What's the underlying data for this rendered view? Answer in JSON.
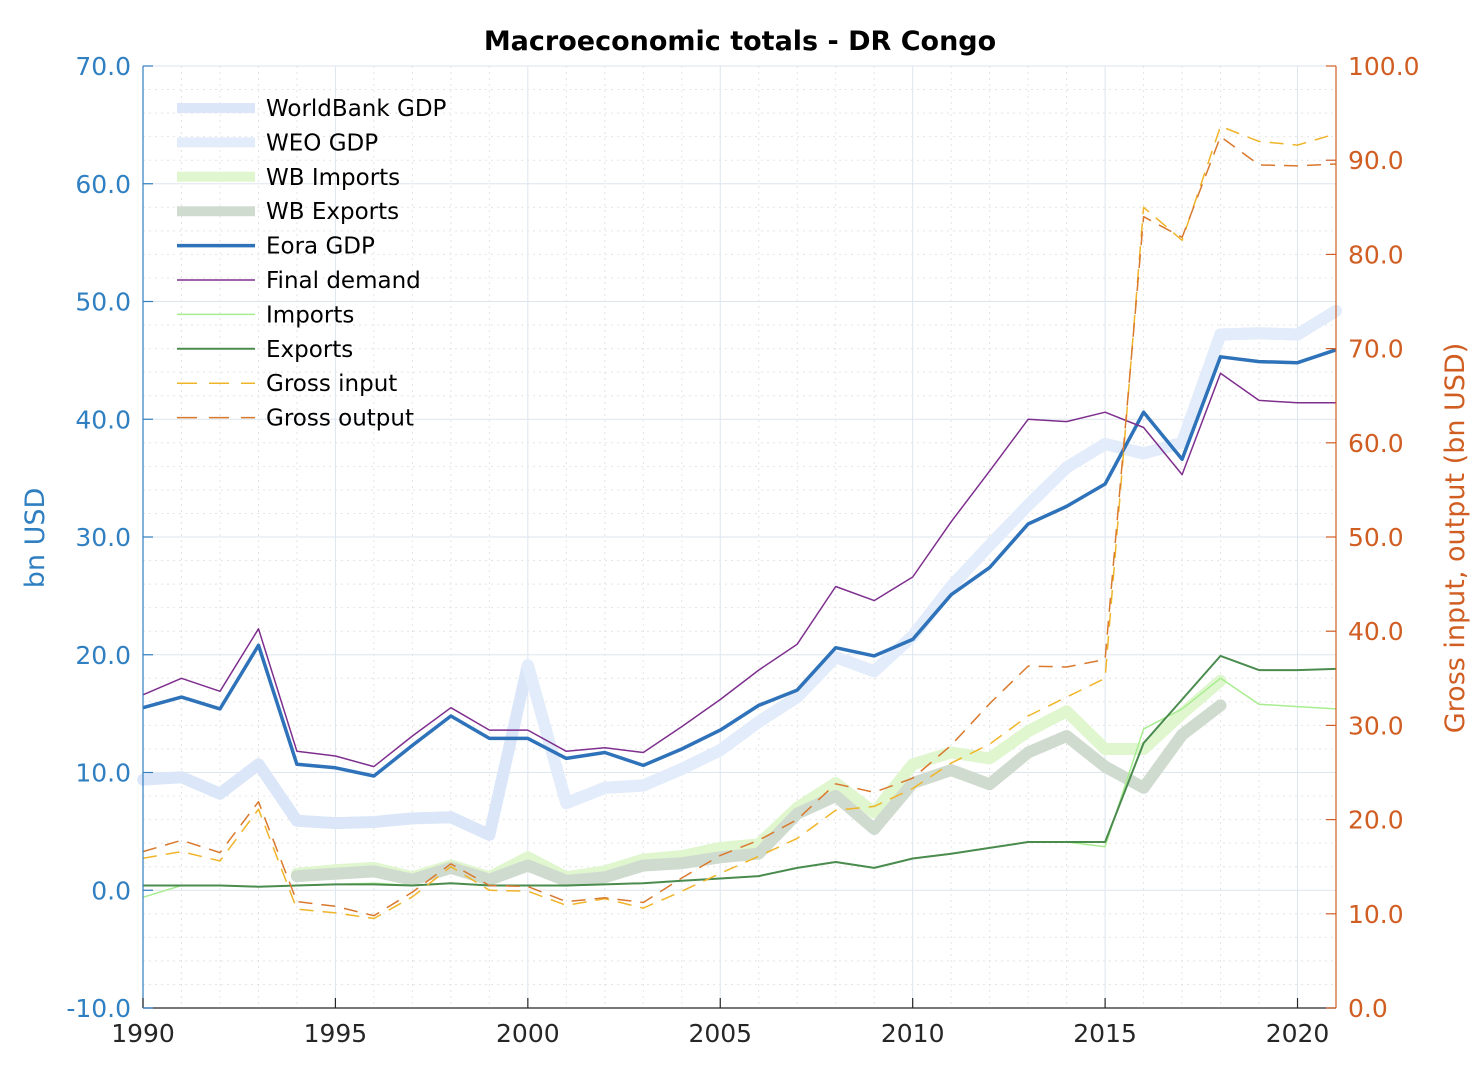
{
  "chart_data": {
    "type": "line",
    "title": "Macroeconomic totals - DR Congo",
    "ylabel_left": "bn USD",
    "ylabel_right": "Gross input, output (bn USD)",
    "xlim": [
      1990,
      2021
    ],
    "ylim_left": [
      -10,
      70
    ],
    "ylim_right": [
      0,
      100
    ],
    "x_ticks": [
      1990,
      1995,
      2000,
      2005,
      2010,
      2015,
      2020
    ],
    "y_ticks_left": [
      "-10.0",
      "0.0",
      "10.0",
      "20.0",
      "30.0",
      "40.0",
      "50.0",
      "60.0",
      "70.0"
    ],
    "y_ticks_right": [
      "0.0",
      "10.0",
      "20.0",
      "30.0",
      "40.0",
      "50.0",
      "60.0",
      "70.0",
      "80.0",
      "90.0",
      "100.0"
    ],
    "grid": true,
    "legend_position": "top-left",
    "series": [
      {
        "name": "WorldBank GDP",
        "axis": "left",
        "color": "#dbe7f8",
        "width": 12,
        "dash": "",
        "x": [
          1990,
          1991,
          1992,
          1993,
          1994,
          1995,
          1996,
          1997,
          1998,
          1999,
          2000,
          2001,
          2002,
          2003,
          2004,
          2005,
          2006,
          2007,
          2008,
          2009,
          2010,
          2011,
          2012,
          2013,
          2014,
          2015,
          2016,
          2017,
          2018,
          2019,
          2020,
          2021
        ],
        "y": [
          9.4,
          9.6,
          8.2,
          10.7,
          5.9,
          5.7,
          5.8,
          6.1,
          6.2,
          4.7,
          19.1,
          7.4,
          8.7,
          8.9,
          10.3,
          11.9,
          14.3,
          16.4,
          19.8,
          18.6,
          21.6,
          25.8,
          29.3,
          32.7,
          35.9,
          37.9,
          37.1,
          38.0,
          47.2,
          47.3,
          47.2,
          49.2
        ]
      },
      {
        "name": "WEO GDP",
        "axis": "left",
        "color": "#e3ecfa",
        "width": 12,
        "dash": "",
        "x": [
          2000,
          2001,
          2002,
          2003,
          2004,
          2005,
          2006,
          2007,
          2008,
          2009,
          2010,
          2011,
          2012,
          2013,
          2014,
          2015,
          2016,
          2017,
          2018,
          2019,
          2020,
          2021
        ],
        "y": [
          19.1,
          7.4,
          8.7,
          8.9,
          10.3,
          11.9,
          14.3,
          16.4,
          19.8,
          18.6,
          21.6,
          25.8,
          29.3,
          32.7,
          35.9,
          37.9,
          37.1,
          38.0,
          47.2,
          47.3,
          47.2,
          49.2
        ]
      },
      {
        "name": "WB Imports",
        "axis": "left",
        "color": "#dff6cf",
        "width": 12,
        "dash": "",
        "x": [
          1994,
          1995,
          1996,
          1997,
          1998,
          1999,
          2000,
          2001,
          2002,
          2003,
          2004,
          2005,
          2006,
          2007,
          2008,
          2009,
          2010,
          2011,
          2012,
          2013,
          2014,
          2015,
          2016,
          2017,
          2018
        ],
        "y": [
          1.4,
          1.7,
          1.9,
          1.1,
          2.1,
          1.1,
          2.8,
          1.1,
          1.6,
          2.6,
          2.9,
          3.6,
          3.9,
          7.0,
          9.1,
          6.6,
          10.7,
          11.7,
          11.2,
          13.5,
          15.2,
          12.0,
          12.0,
          15.0,
          17.8
        ]
      },
      {
        "name": "WB Exports",
        "axis": "left",
        "color": "#d0dbcf",
        "width": 12,
        "dash": "",
        "x": [
          1994,
          1995,
          1996,
          1997,
          1998,
          1999,
          2000,
          2001,
          2002,
          2003,
          2004,
          2005,
          2006,
          2007,
          2008,
          2009,
          2010,
          2011,
          2012,
          2013,
          2014,
          2015,
          2016,
          2017,
          2018
        ],
        "y": [
          1.2,
          1.4,
          1.6,
          0.9,
          1.9,
          0.9,
          2.1,
          0.8,
          1.1,
          2.1,
          2.3,
          2.8,
          3.1,
          6.5,
          8.0,
          5.2,
          9.1,
          10.2,
          9.0,
          11.7,
          13.1,
          10.5,
          8.7,
          13.2,
          15.7
        ]
      },
      {
        "name": "Eora GDP",
        "axis": "left",
        "color": "#2e72b9",
        "width": 3.5,
        "dash": "",
        "x": [
          1990,
          1991,
          1992,
          1993,
          1994,
          1995,
          1996,
          1997,
          1998,
          1999,
          2000,
          2001,
          2002,
          2003,
          2004,
          2005,
          2006,
          2007,
          2008,
          2009,
          2010,
          2011,
          2012,
          2013,
          2014,
          2015,
          2016,
          2017,
          2018,
          2019,
          2020,
          2021
        ],
        "y": [
          15.5,
          16.4,
          15.4,
          20.8,
          10.7,
          10.4,
          9.7,
          12.3,
          14.8,
          12.9,
          12.9,
          11.2,
          11.7,
          10.6,
          12.0,
          13.6,
          15.7,
          17.0,
          20.6,
          19.9,
          21.3,
          25.1,
          27.4,
          31.1,
          32.6,
          34.5,
          40.6,
          36.6,
          45.3,
          44.9,
          44.8,
          45.9
        ]
      },
      {
        "name": "Final demand",
        "axis": "left",
        "color": "#7e2f8e",
        "width": 1.5,
        "dash": "",
        "x": [
          1990,
          1991,
          1992,
          1993,
          1994,
          1995,
          1996,
          1997,
          1998,
          1999,
          2000,
          2001,
          2002,
          2003,
          2004,
          2005,
          2006,
          2007,
          2008,
          2009,
          2010,
          2011,
          2012,
          2013,
          2014,
          2015,
          2016,
          2017,
          2018,
          2019,
          2020,
          2021
        ],
        "y": [
          16.6,
          18.0,
          16.9,
          22.2,
          11.8,
          11.4,
          10.5,
          13.1,
          15.5,
          13.6,
          13.6,
          11.8,
          12.1,
          11.7,
          13.9,
          16.2,
          18.7,
          20.9,
          25.8,
          24.6,
          26.6,
          31.3,
          35.6,
          40.0,
          39.8,
          40.6,
          39.3,
          35.3,
          43.9,
          41.6,
          41.4,
          41.4
        ]
      },
      {
        "name": "Imports",
        "axis": "left",
        "color": "#a8ee90",
        "width": 1.5,
        "dash": "",
        "x": [
          1990,
          1991,
          1992,
          1993,
          1994,
          1995,
          1996,
          1997,
          1998,
          1999,
          2000,
          2001,
          2002,
          2003,
          2004,
          2005,
          2006,
          2007,
          2008,
          2009,
          2010,
          2011,
          2012,
          2013,
          2014,
          2015,
          2016,
          2017,
          2018,
          2019,
          2020,
          2021
        ],
        "y": [
          -0.6,
          0.4,
          0.4,
          0.3,
          0.4,
          0.5,
          0.6,
          0.4,
          0.6,
          0.4,
          0.4,
          0.4,
          0.5,
          0.6,
          0.8,
          1.0,
          1.2,
          1.9,
          2.4,
          1.9,
          2.7,
          3.1,
          3.6,
          4.1,
          4.1,
          3.7,
          13.7,
          15.4,
          18.0,
          15.8,
          15.6,
          15.4
        ]
      },
      {
        "name": "Exports",
        "axis": "left",
        "color": "#4a8b4e",
        "width": 2,
        "dash": "",
        "x": [
          1990,
          1991,
          1992,
          1993,
          1994,
          1995,
          1996,
          1997,
          1998,
          1999,
          2000,
          2001,
          2002,
          2003,
          2004,
          2005,
          2006,
          2007,
          2008,
          2009,
          2010,
          2011,
          2012,
          2013,
          2014,
          2015,
          2016,
          2017,
          2018,
          2019,
          2020,
          2021
        ],
        "y": [
          0.4,
          0.4,
          0.4,
          0.3,
          0.4,
          0.5,
          0.5,
          0.4,
          0.6,
          0.4,
          0.4,
          0.4,
          0.5,
          0.6,
          0.8,
          1.0,
          1.2,
          1.9,
          2.4,
          1.9,
          2.7,
          3.1,
          3.6,
          4.1,
          4.1,
          4.1,
          12.5,
          16.2,
          19.9,
          18.7,
          18.7,
          18.8
        ]
      },
      {
        "name": "Gross input",
        "axis": "right",
        "color": "#f0b429",
        "width": 1.5,
        "dash": "14 9",
        "x": [
          1990,
          1991,
          1992,
          1993,
          1994,
          1995,
          1996,
          1997,
          1998,
          1999,
          2000,
          2001,
          2002,
          2003,
          2004,
          2005,
          2006,
          2007,
          2008,
          2009,
          2010,
          2011,
          2012,
          2013,
          2014,
          2015,
          2016,
          2017,
          2018,
          2019,
          2020,
          2021
        ],
        "y": [
          15.9,
          16.6,
          15.6,
          21.1,
          10.5,
          10.1,
          9.5,
          11.8,
          15.0,
          12.5,
          12.4,
          10.9,
          11.6,
          10.6,
          12.4,
          14.3,
          16.1,
          18.0,
          21.0,
          21.4,
          23.3,
          26.0,
          28.0,
          31.0,
          33.0,
          35.0,
          85.0,
          81.5,
          93.6,
          92.0,
          91.6,
          92.8
        ]
      },
      {
        "name": "Gross output",
        "axis": "right",
        "color": "#d9792e",
        "width": 1.5,
        "dash": "14 9",
        "x": [
          1990,
          1991,
          1992,
          1993,
          1994,
          1995,
          1996,
          1997,
          1998,
          1999,
          2000,
          2001,
          2002,
          2003,
          2004,
          2005,
          2006,
          2007,
          2008,
          2009,
          2010,
          2011,
          2012,
          2013,
          2014,
          2015,
          2016,
          2017,
          2018,
          2019,
          2020,
          2021
        ],
        "y": [
          16.6,
          17.8,
          16.5,
          21.9,
          11.3,
          10.8,
          9.8,
          12.3,
          15.3,
          13.0,
          12.9,
          11.3,
          11.7,
          11.2,
          13.8,
          16.2,
          17.8,
          20.0,
          23.8,
          22.9,
          24.4,
          27.9,
          32.3,
          36.3,
          36.2,
          37.0,
          84.0,
          81.8,
          92.5,
          89.5,
          89.4,
          89.6
        ]
      }
    ]
  }
}
